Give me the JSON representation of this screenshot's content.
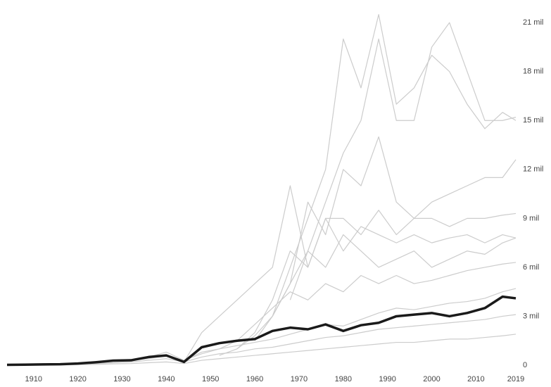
{
  "chart_data": {
    "type": "line",
    "x": [
      1904,
      1908,
      1912,
      1916,
      1920,
      1924,
      1928,
      1932,
      1936,
      1940,
      1944,
      1948,
      1952,
      1956,
      1960,
      1964,
      1968,
      1972,
      1976,
      1980,
      1984,
      1988,
      1992,
      1996,
      2000,
      2004,
      2008,
      2012,
      2016,
      2019
    ],
    "xlim": [
      1904,
      2019
    ],
    "xticks": [
      1910,
      1920,
      1930,
      1940,
      1950,
      1960,
      1970,
      1980,
      1990,
      2000,
      2010,
      2019
    ],
    "ylim": [
      0,
      22
    ],
    "yticks": [
      0,
      {
        "value": 3,
        "label": "3 mil"
      },
      {
        "value": 6,
        "label": "6 mil"
      },
      {
        "value": 9,
        "label": "9 mil"
      },
      {
        "value": 12,
        "label": "12 mil"
      },
      {
        "value": 15,
        "label": "15 mil"
      },
      {
        "value": 18,
        "label": "18 mil"
      },
      {
        "value": 21,
        "label": "21 mil"
      }
    ],
    "grid": false,
    "series": [
      {
        "color": "#cccccc",
        "values": [
          null,
          null,
          null,
          null,
          null,
          null,
          null,
          null,
          null,
          null,
          null,
          null,
          null,
          null,
          null,
          3,
          6,
          9,
          12,
          20,
          17,
          21.5,
          16,
          17,
          19,
          18,
          16,
          14.5,
          15.5,
          15
        ]
      },
      {
        "color": "#cccccc",
        "values": [
          null,
          null,
          null,
          null,
          null,
          null,
          null,
          null,
          null,
          null,
          null,
          null,
          null,
          null,
          null,
          null,
          4,
          7,
          10,
          13,
          15,
          20,
          15,
          15,
          19.5,
          21,
          18,
          15,
          15,
          15.2
        ]
      },
      {
        "color": "#cccccc",
        "values": [
          null,
          null,
          null,
          null,
          null,
          null,
          null,
          null,
          null,
          null,
          null,
          null,
          null,
          null,
          1.5,
          3,
          5,
          10,
          8,
          12,
          11,
          14,
          10,
          9,
          10,
          10.5,
          11,
          11.5,
          11.5,
          12.6
        ]
      },
      {
        "color": "#cccccc",
        "values": [
          null,
          null,
          null,
          null,
          null,
          null,
          null,
          null,
          null,
          null,
          null,
          null,
          null,
          1,
          2,
          4,
          7,
          6,
          9,
          9,
          8,
          9.5,
          8,
          9,
          9,
          8.5,
          9,
          9,
          9.2,
          9.3
        ]
      },
      {
        "color": "#cccccc",
        "values": [
          null,
          null,
          null,
          null,
          null,
          null,
          null,
          null,
          null,
          null,
          null,
          null,
          0.6,
          1,
          1.8,
          3,
          5,
          7,
          6,
          8,
          7,
          6,
          6.5,
          7,
          6,
          6.5,
          7,
          6.8,
          7.5,
          7.8
        ]
      },
      {
        "color": "#cccccc",
        "values": [
          null,
          null,
          null,
          null,
          null,
          null,
          null,
          null,
          0.5,
          0.8,
          0.3,
          0.7,
          1,
          1.5,
          2.5,
          3.5,
          4.5,
          4,
          5,
          4.5,
          5.5,
          5,
          5.5,
          5,
          5.2,
          5.5,
          5.8,
          6,
          6.2,
          6.3
        ]
      },
      {
        "color": "#cccccc",
        "values": [
          null,
          null,
          null,
          null,
          null,
          null,
          null,
          null,
          null,
          null,
          0.2,
          2,
          3,
          4,
          5,
          6,
          11,
          6,
          9,
          7,
          8.5,
          8,
          7.5,
          8,
          7.5,
          7.8,
          8,
          7.5,
          8,
          7.8
        ]
      },
      {
        "color": "#cccccc",
        "values": [
          0,
          0,
          0.02,
          0.05,
          0.08,
          0.15,
          0.25,
          0.3,
          0.4,
          0.6,
          0.3,
          0.8,
          1,
          1.2,
          1.4,
          1.6,
          1.9,
          2.2,
          2.5,
          2.4,
          2.8,
          3.2,
          3.5,
          3.4,
          3.6,
          3.8,
          3.9,
          4.1,
          4.5,
          4.7
        ]
      },
      {
        "color": "#cccccc",
        "values": [
          0,
          0,
          0.01,
          0.03,
          0.06,
          0.1,
          0.15,
          0.2,
          0.3,
          0.4,
          0.2,
          0.5,
          0.7,
          0.8,
          1,
          1.1,
          1.3,
          1.5,
          1.7,
          1.8,
          2,
          2.2,
          2.3,
          2.4,
          2.5,
          2.6,
          2.7,
          2.8,
          3,
          3.1
        ]
      },
      {
        "color": "#cccccc",
        "values": [
          0,
          0,
          0,
          0.01,
          0.03,
          0.05,
          0.08,
          0.1,
          0.15,
          0.2,
          0.1,
          0.3,
          0.4,
          0.5,
          0.6,
          0.7,
          0.8,
          0.9,
          1,
          1.1,
          1.2,
          1.3,
          1.4,
          1.4,
          1.5,
          1.6,
          1.6,
          1.7,
          1.8,
          1.9
        ]
      },
      {
        "color": "#1a1a1a",
        "values": [
          0.02,
          0.03,
          0.05,
          0.06,
          0.1,
          0.18,
          0.28,
          0.3,
          0.5,
          0.6,
          0.2,
          1.1,
          1.35,
          1.5,
          1.6,
          2.1,
          2.3,
          2.2,
          2.5,
          2.1,
          2.45,
          2.6,
          3.0,
          3.1,
          3.2,
          3.0,
          3.2,
          3.5,
          4.2,
          4.1
        ]
      }
    ]
  }
}
